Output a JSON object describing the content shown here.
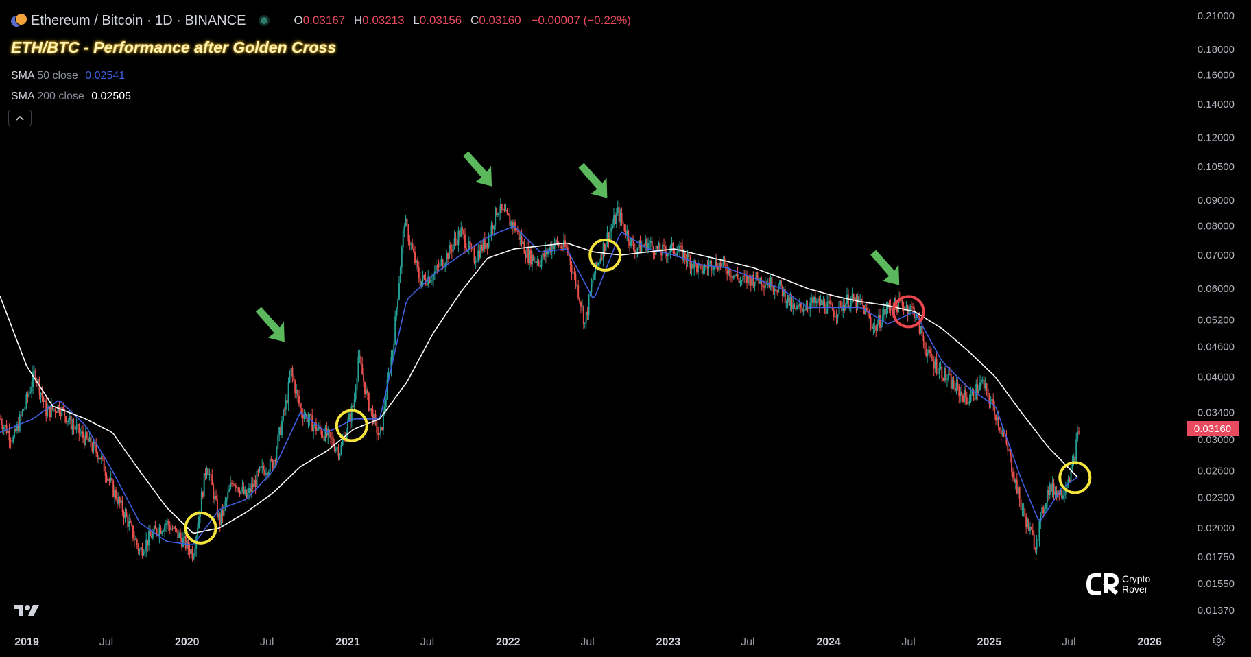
{
  "header": {
    "symbol": "Ethereum / Bitcoin · 1D · BINANCE",
    "o_label": "O",
    "o_value": "0.03167",
    "h_label": "H",
    "h_value": "0.03213",
    "l_label": "L",
    "l_value": "0.03156",
    "c_label": "C",
    "c_value": "0.03160",
    "change": "−0.00007 (−0.22%)"
  },
  "indicators": {
    "sma50": {
      "name": "SMA",
      "params": "50 close",
      "value": "0.02541",
      "color": "#3f5fe0"
    },
    "sma200": {
      "name": "SMA",
      "params": "200 close",
      "value": "0.02505",
      "color": "#ffffff"
    }
  },
  "collapse_icon": "chevron-up-icon",
  "last_price_label": "0.03160",
  "watermark": {
    "line1": "Crypto",
    "line2": "Rover"
  },
  "colors": {
    "up": "#26a69a",
    "down": "#ef5350",
    "accent_red": "#e84a5f",
    "circle_yellow": "#f5e43c",
    "circle_red": "#e8454f",
    "arrow_green": "#5cb85c"
  },
  "chart_data": {
    "type": "line",
    "title": "ETH/BTC - Performance after Golden Cross",
    "y_scale": "log",
    "ylim": [
      0.0125,
      0.22
    ],
    "xlim": [
      "2018-11-01",
      "2026-07-01"
    ],
    "y_ticks": [
      "0.21000",
      "0.18000",
      "0.16000",
      "0.14000",
      "0.12000",
      "0.10500",
      "0.09000",
      "0.08000",
      "0.07000",
      "0.06000",
      "0.05200",
      "0.04600",
      "0.04000",
      "0.03400",
      "0.03000",
      "0.02600",
      "0.02300",
      "0.02000",
      "0.01750",
      "0.01550",
      "0.01370"
    ],
    "x_ticks": [
      {
        "date": "2019-01-01",
        "label": "2019",
        "major": true
      },
      {
        "date": "2019-07-01",
        "label": "Jul",
        "major": false
      },
      {
        "date": "2020-01-01",
        "label": "2020",
        "major": true
      },
      {
        "date": "2020-07-01",
        "label": "Jul",
        "major": false
      },
      {
        "date": "2021-01-01",
        "label": "2021",
        "major": true
      },
      {
        "date": "2021-07-01",
        "label": "Jul",
        "major": false
      },
      {
        "date": "2022-01-01",
        "label": "2022",
        "major": true
      },
      {
        "date": "2022-07-01",
        "label": "Jul",
        "major": false
      },
      {
        "date": "2023-01-01",
        "label": "2023",
        "major": true
      },
      {
        "date": "2023-07-01",
        "label": "Jul",
        "major": false
      },
      {
        "date": "2024-01-01",
        "label": "2024",
        "major": true
      },
      {
        "date": "2024-07-01",
        "label": "Jul",
        "major": false
      },
      {
        "date": "2025-01-01",
        "label": "2025",
        "major": true
      },
      {
        "date": "2025-07-01",
        "label": "Jul",
        "major": false
      },
      {
        "date": "2026-01-01",
        "label": "2026",
        "major": true
      }
    ],
    "series": [
      {
        "name": "ETH/BTC",
        "style": "candles",
        "points": [
          [
            "2018-11-01",
            0.033
          ],
          [
            "2018-12-01",
            0.03
          ],
          [
            "2019-01-01",
            0.036
          ],
          [
            "2019-01-20",
            0.041
          ],
          [
            "2019-02-15",
            0.034
          ],
          [
            "2019-03-15",
            0.035
          ],
          [
            "2019-04-15",
            0.032
          ],
          [
            "2019-05-15",
            0.03
          ],
          [
            "2019-06-15",
            0.028
          ],
          [
            "2019-07-15",
            0.024
          ],
          [
            "2019-08-15",
            0.021
          ],
          [
            "2019-09-15",
            0.018
          ],
          [
            "2019-10-15",
            0.0195
          ],
          [
            "2019-11-15",
            0.0205
          ],
          [
            "2019-12-15",
            0.0192
          ],
          [
            "2020-01-15",
            0.0178
          ],
          [
            "2020-02-15",
            0.027
          ],
          [
            "2020-03-15",
            0.0205
          ],
          [
            "2020-04-15",
            0.025
          ],
          [
            "2020-05-15",
            0.023
          ],
          [
            "2020-06-15",
            0.0258
          ],
          [
            "2020-07-15",
            0.027
          ],
          [
            "2020-08-15",
            0.036
          ],
          [
            "2020-08-25",
            0.041
          ],
          [
            "2020-09-15",
            0.0345
          ],
          [
            "2020-10-15",
            0.032
          ],
          [
            "2020-11-15",
            0.0305
          ],
          [
            "2020-12-15",
            0.0285
          ],
          [
            "2021-01-15",
            0.0355
          ],
          [
            "2021-01-25",
            0.044
          ],
          [
            "2021-02-15",
            0.036
          ],
          [
            "2021-03-15",
            0.03
          ],
          [
            "2021-04-15",
            0.047
          ],
          [
            "2021-05-10",
            0.082
          ],
          [
            "2021-06-15",
            0.062
          ],
          [
            "2021-07-15",
            0.064
          ],
          [
            "2021-08-15",
            0.07
          ],
          [
            "2021-09-15",
            0.078
          ],
          [
            "2021-10-15",
            0.069
          ],
          [
            "2021-11-15",
            0.075
          ],
          [
            "2021-12-08",
            0.087
          ],
          [
            "2022-01-15",
            0.08
          ],
          [
            "2022-02-15",
            0.07
          ],
          [
            "2022-03-15",
            0.068
          ],
          [
            "2022-04-15",
            0.074
          ],
          [
            "2022-05-15",
            0.072
          ],
          [
            "2022-06-15",
            0.057
          ],
          [
            "2022-06-25",
            0.051
          ],
          [
            "2022-07-15",
            0.064
          ],
          [
            "2022-08-15",
            0.076
          ],
          [
            "2022-09-08",
            0.085
          ],
          [
            "2022-10-15",
            0.072
          ],
          [
            "2022-11-15",
            0.074
          ],
          [
            "2022-12-15",
            0.071
          ],
          [
            "2023-01-15",
            0.072
          ],
          [
            "2023-02-15",
            0.069
          ],
          [
            "2023-03-15",
            0.065
          ],
          [
            "2023-04-15",
            0.068
          ],
          [
            "2023-05-15",
            0.066
          ],
          [
            "2023-06-15",
            0.062
          ],
          [
            "2023-07-15",
            0.063
          ],
          [
            "2023-08-15",
            0.062
          ],
          [
            "2023-09-15",
            0.06
          ],
          [
            "2023-10-15",
            0.054
          ],
          [
            "2023-11-15",
            0.056
          ],
          [
            "2023-12-15",
            0.056
          ],
          [
            "2024-01-15",
            0.054
          ],
          [
            "2024-02-15",
            0.057
          ],
          [
            "2024-03-15",
            0.056
          ],
          [
            "2024-04-15",
            0.05
          ],
          [
            "2024-05-15",
            0.055
          ],
          [
            "2024-06-15",
            0.056
          ],
          [
            "2024-07-15",
            0.054
          ],
          [
            "2024-08-15",
            0.044
          ],
          [
            "2024-09-15",
            0.041
          ],
          [
            "2024-10-15",
            0.038
          ],
          [
            "2024-11-15",
            0.036
          ],
          [
            "2024-12-15",
            0.039
          ],
          [
            "2025-01-15",
            0.034
          ],
          [
            "2025-02-15",
            0.028
          ],
          [
            "2025-03-15",
            0.022
          ],
          [
            "2025-04-15",
            0.0185
          ],
          [
            "2025-05-15",
            0.024
          ],
          [
            "2025-06-15",
            0.0235
          ],
          [
            "2025-07-10",
            0.0265
          ],
          [
            "2025-07-25",
            0.032
          ]
        ]
      },
      {
        "name": "SMA 50 close",
        "style": "line",
        "color": "#3f5fe0",
        "points": [
          [
            "2018-11-01",
            0.031
          ],
          [
            "2019-01-15",
            0.033
          ],
          [
            "2019-03-15",
            0.036
          ],
          [
            "2019-05-15",
            0.032
          ],
          [
            "2019-07-15",
            0.026
          ],
          [
            "2019-09-15",
            0.0205
          ],
          [
            "2019-11-15",
            0.0188
          ],
          [
            "2020-01-15",
            0.0185
          ],
          [
            "2020-03-15",
            0.0218
          ],
          [
            "2020-05-15",
            0.0228
          ],
          [
            "2020-07-15",
            0.026
          ],
          [
            "2020-09-15",
            0.034
          ],
          [
            "2020-11-15",
            0.031
          ],
          [
            "2021-01-15",
            0.033
          ],
          [
            "2021-03-15",
            0.033
          ],
          [
            "2021-05-15",
            0.057
          ],
          [
            "2021-07-15",
            0.064
          ],
          [
            "2021-09-15",
            0.07
          ],
          [
            "2021-11-15",
            0.076
          ],
          [
            "2022-01-15",
            0.08
          ],
          [
            "2022-03-15",
            0.071
          ],
          [
            "2022-05-15",
            0.072
          ],
          [
            "2022-07-15",
            0.057
          ],
          [
            "2022-09-15",
            0.078
          ],
          [
            "2022-11-15",
            0.072
          ],
          [
            "2023-01-15",
            0.07
          ],
          [
            "2023-03-15",
            0.067
          ],
          [
            "2023-05-15",
            0.066
          ],
          [
            "2023-07-15",
            0.063
          ],
          [
            "2023-09-15",
            0.06
          ],
          [
            "2023-11-15",
            0.055
          ],
          [
            "2024-01-15",
            0.055
          ],
          [
            "2024-03-15",
            0.055
          ],
          [
            "2024-05-15",
            0.051
          ],
          [
            "2024-07-15",
            0.054
          ],
          [
            "2024-09-15",
            0.043
          ],
          [
            "2024-11-15",
            0.038
          ],
          [
            "2025-01-15",
            0.035
          ],
          [
            "2025-03-15",
            0.025
          ],
          [
            "2025-04-25",
            0.0205
          ],
          [
            "2025-06-15",
            0.024
          ],
          [
            "2025-07-25",
            0.02541
          ]
        ]
      },
      {
        "name": "SMA 200 close",
        "style": "line",
        "color": "#ffffff",
        "points": [
          [
            "2018-11-01",
            0.058
          ],
          [
            "2019-01-01",
            0.042
          ],
          [
            "2019-03-01",
            0.035
          ],
          [
            "2019-05-15",
            0.033
          ],
          [
            "2019-07-15",
            0.031
          ],
          [
            "2019-09-15",
            0.026
          ],
          [
            "2019-11-15",
            0.022
          ],
          [
            "2020-01-15",
            0.0195
          ],
          [
            "2020-03-15",
            0.02
          ],
          [
            "2020-05-15",
            0.0215
          ],
          [
            "2020-07-15",
            0.0235
          ],
          [
            "2020-09-15",
            0.0265
          ],
          [
            "2020-11-15",
            0.0285
          ],
          [
            "2021-01-15",
            0.0315
          ],
          [
            "2021-03-15",
            0.033
          ],
          [
            "2021-05-15",
            0.039
          ],
          [
            "2021-07-15",
            0.049
          ],
          [
            "2021-09-15",
            0.059
          ],
          [
            "2021-11-15",
            0.069
          ],
          [
            "2022-01-15",
            0.072
          ],
          [
            "2022-03-15",
            0.073
          ],
          [
            "2022-05-15",
            0.074
          ],
          [
            "2022-07-15",
            0.071
          ],
          [
            "2022-09-15",
            0.07
          ],
          [
            "2022-11-15",
            0.071
          ],
          [
            "2023-01-15",
            0.072
          ],
          [
            "2023-03-15",
            0.07
          ],
          [
            "2023-05-15",
            0.068
          ],
          [
            "2023-07-15",
            0.066
          ],
          [
            "2023-09-15",
            0.063
          ],
          [
            "2023-11-15",
            0.06
          ],
          [
            "2024-01-15",
            0.058
          ],
          [
            "2024-03-15",
            0.0565
          ],
          [
            "2024-05-15",
            0.0555
          ],
          [
            "2024-07-15",
            0.054
          ],
          [
            "2024-09-15",
            0.05
          ],
          [
            "2024-11-15",
            0.045
          ],
          [
            "2025-01-15",
            0.04
          ],
          [
            "2025-03-15",
            0.034
          ],
          [
            "2025-05-15",
            0.029
          ],
          [
            "2025-07-25",
            0.02505
          ]
        ]
      }
    ],
    "annotations": {
      "golden_cross_circles": [
        {
          "date": "2020-02-01",
          "value": 0.02,
          "color": "yellow"
        },
        {
          "date": "2021-01-10",
          "value": 0.032,
          "color": "yellow"
        },
        {
          "date": "2022-08-10",
          "value": 0.07,
          "color": "yellow"
        },
        {
          "date": "2024-07-01",
          "value": 0.054,
          "color": "red"
        },
        {
          "date": "2025-07-15",
          "value": 0.0252,
          "color": "yellow"
        }
      ],
      "arrows": [
        {
          "date": "2020-08-10",
          "value": 0.047
        },
        {
          "date": "2021-11-25",
          "value": 0.096
        },
        {
          "date": "2022-08-15",
          "value": 0.091
        },
        {
          "date": "2024-06-10",
          "value": 0.061
        }
      ]
    }
  }
}
